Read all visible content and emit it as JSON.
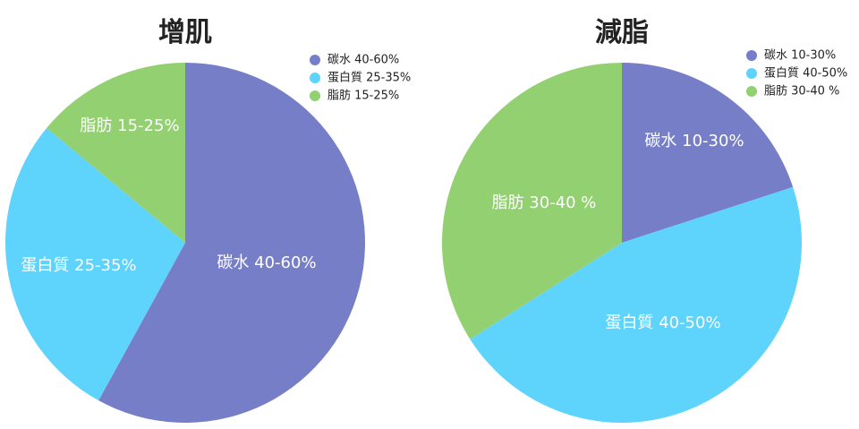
{
  "chart_data": [
    {
      "type": "pie",
      "title": "增肌",
      "categories": [
        "碳水 40-60%",
        "蛋白質 25-35%",
        "脂肪 15-25%"
      ],
      "values": [
        58,
        28,
        14
      ],
      "colors": [
        "#767ec8",
        "#5ed3fb",
        "#93d071"
      ],
      "slice_labels": [
        "碳水 40-60%",
        "蛋白質 25-35%",
        "脂肪 15-25%"
      ],
      "legend": [
        "碳水 40-60%",
        "蛋白質 25-35%",
        "脂肪 15-25%"
      ],
      "legend_position": "top-right"
    },
    {
      "type": "pie",
      "title": "減脂",
      "categories": [
        "碳水 10-30%",
        "蛋白質 40-50%",
        "脂肪 30-40 %"
      ],
      "values": [
        20,
        46,
        34
      ],
      "colors": [
        "#767ec8",
        "#5ed3fb",
        "#93d071"
      ],
      "slice_labels": [
        "碳水 10-30%",
        "蛋白質 40-50%",
        "脂肪 30-40 %"
      ],
      "legend": [
        "碳水 10-30%",
        "蛋白質 40-50%",
        "脂肪 30-40 %"
      ],
      "legend_position": "top-right"
    }
  ]
}
